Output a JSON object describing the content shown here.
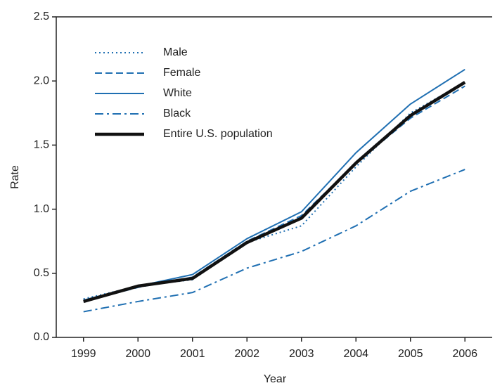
{
  "chart_data": {
    "type": "line",
    "x_label": "Year",
    "y_label": "Rate",
    "categories": [
      "1999",
      "2000",
      "2001",
      "2002",
      "2003",
      "2004",
      "2005",
      "2006"
    ],
    "series": [
      {
        "name": "Male",
        "color": "#1f6fb2",
        "dash": "dotted",
        "width": 2,
        "values": [
          0.3,
          0.4,
          0.45,
          0.74,
          0.87,
          1.33,
          1.75,
          1.99
        ]
      },
      {
        "name": "Female",
        "color": "#1f6fb2",
        "dash": "dashed",
        "width": 2,
        "values": [
          0.28,
          0.39,
          0.47,
          0.75,
          0.95,
          1.36,
          1.71,
          1.96
        ]
      },
      {
        "name": "White",
        "color": "#1f6fb2",
        "dash": "solid",
        "width": 2,
        "values": [
          0.29,
          0.4,
          0.49,
          0.77,
          0.98,
          1.44,
          1.82,
          2.09
        ]
      },
      {
        "name": "Black",
        "color": "#1f6fb2",
        "dash": "dashdot",
        "width": 2,
        "values": [
          0.2,
          0.28,
          0.35,
          0.54,
          0.67,
          0.87,
          1.14,
          1.31
        ]
      },
      {
        "name": "Entire U.S. population",
        "color": "#111111",
        "dash": "solid",
        "width": 4.5,
        "values": [
          0.28,
          0.4,
          0.46,
          0.74,
          0.93,
          1.36,
          1.73,
          1.99
        ]
      }
    ],
    "ylim": [
      0,
      2.5
    ],
    "yticks": [
      {
        "value": 0,
        "label": "0.0"
      },
      0.5,
      {
        "value": 1,
        "label": "1.0"
      },
      1.5,
      {
        "value": 2,
        "label": "2.0"
      },
      2.5
    ],
    "grid": false,
    "legend": "upper left"
  }
}
